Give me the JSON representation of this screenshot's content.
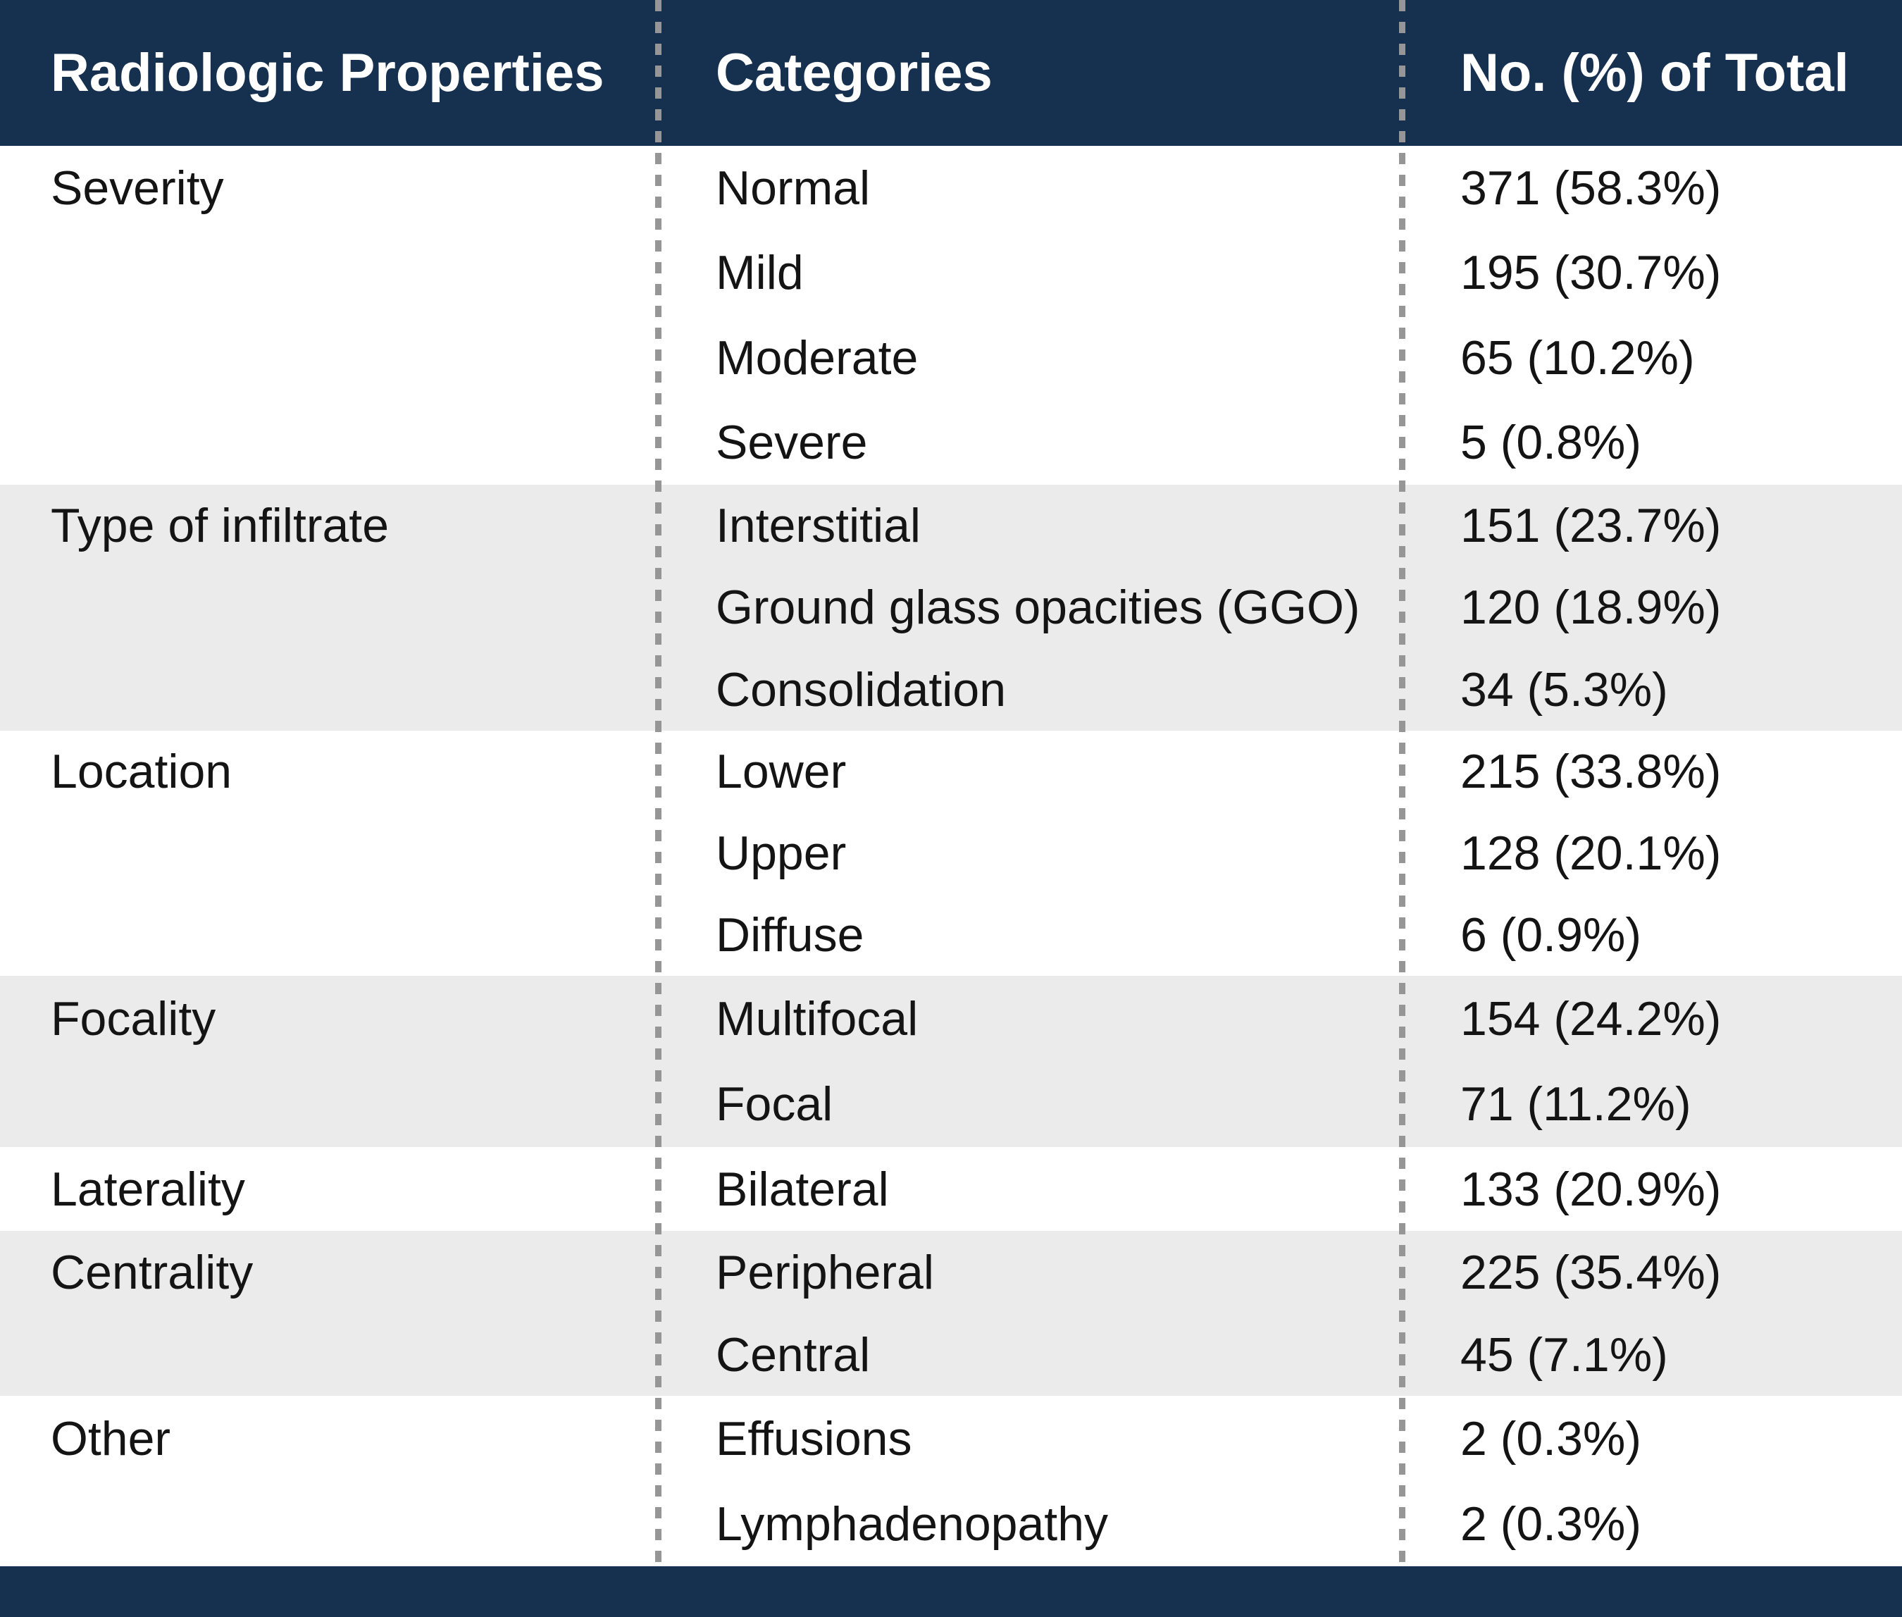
{
  "colors": {
    "header_navy": "#16304f",
    "row_alt_gray": "#ebebeb",
    "row_white": "#ffffff",
    "separator_gray": "#969696",
    "body_text": "#141414",
    "header_text": "#ffffff"
  },
  "table": {
    "columns": [
      "Radiologic Properties",
      "Categories",
      "No. (%) of Total"
    ],
    "rows": [
      {
        "property": "Severity",
        "categories": [
          {
            "label": "Normal",
            "value": "371 (58.3%)"
          },
          {
            "label": "Mild",
            "value": "195 (30.7%)"
          },
          {
            "label": "Moderate",
            "value": "65 (10.2%)"
          },
          {
            "label": "Severe",
            "value": "5 (0.8%)"
          }
        ]
      },
      {
        "property": "Type of infiltrate",
        "categories": [
          {
            "label": "Interstitial",
            "value": "151 (23.7%)"
          },
          {
            "label": "Ground glass opacities (GGO)",
            "value": "120 (18.9%)"
          },
          {
            "label": "Consolidation",
            "value": "34 (5.3%)"
          }
        ]
      },
      {
        "property": "Location",
        "categories": [
          {
            "label": "Lower",
            "value": "215 (33.8%)"
          },
          {
            "label": "Upper",
            "value": "128 (20.1%)"
          },
          {
            "label": "Diffuse",
            "value": "6 (0.9%)"
          }
        ]
      },
      {
        "property": "Focality",
        "categories": [
          {
            "label": "Multifocal",
            "value": "154 (24.2%)"
          },
          {
            "label": "Focal",
            "value": "71 (11.2%)"
          }
        ]
      },
      {
        "property": "Laterality",
        "categories": [
          {
            "label": "Bilateral",
            "value": "133 (20.9%)"
          }
        ]
      },
      {
        "property": "Centrality",
        "categories": [
          {
            "label": "Peripheral",
            "value": "225 (35.4%)"
          },
          {
            "label": "Central",
            "value": "45 (7.1%)"
          }
        ]
      },
      {
        "property": "Other",
        "categories": [
          {
            "label": "Effusions",
            "value": "2 (0.3%)"
          },
          {
            "label": "Lymphadenopathy",
            "value": "2 (0.3%)"
          }
        ]
      }
    ]
  }
}
